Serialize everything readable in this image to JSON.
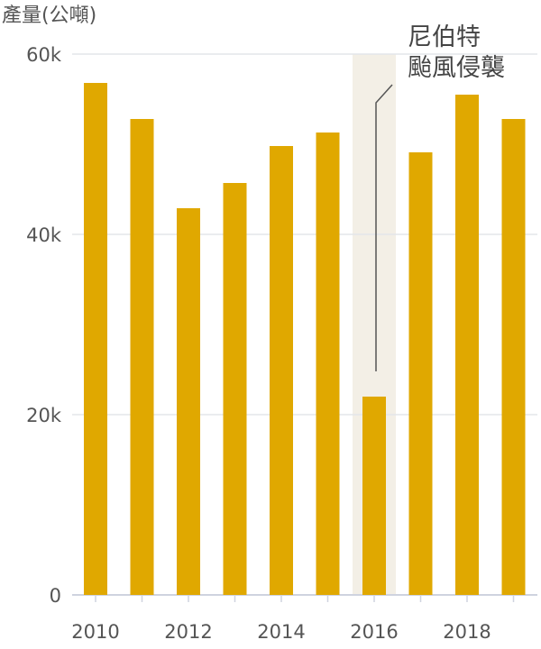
{
  "chart_data": {
    "type": "bar",
    "ylabel": "產量(公噸)",
    "ylim": [
      0,
      60000
    ],
    "y_ticks": [
      {
        "value": 0,
        "label": "0"
      },
      {
        "value": 20000,
        "label": "20k"
      },
      {
        "value": 40000,
        "label": "40k"
      },
      {
        "value": 60000,
        "label": "60k"
      }
    ],
    "grid": true,
    "categories": [
      "2010",
      "2011",
      "2012",
      "2013",
      "2014",
      "2015",
      "2016",
      "2017",
      "2018",
      "2019"
    ],
    "x_tick_labels": [
      "2010",
      "2012",
      "2014",
      "2016",
      "2018"
    ],
    "values": [
      56800,
      52800,
      42900,
      45700,
      49800,
      51300,
      22000,
      49100,
      55500,
      52800
    ],
    "bar_color": "#e0a800",
    "highlight": {
      "category": "2016",
      "background_color": "#f3efe6",
      "annotation_lines": [
        "尼伯特",
        "颱風侵襲"
      ]
    }
  }
}
